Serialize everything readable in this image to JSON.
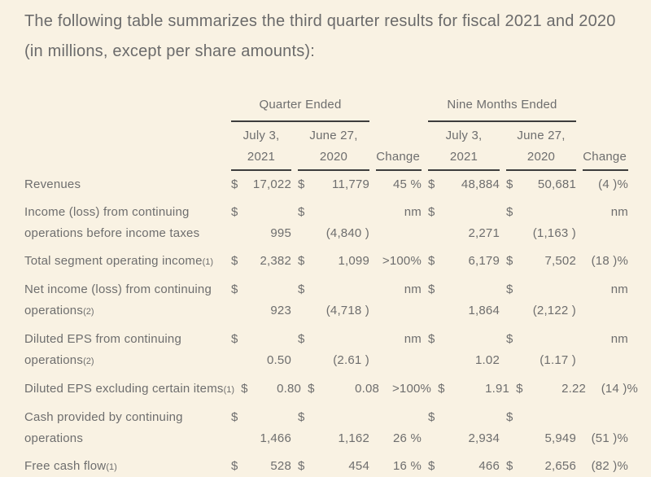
{
  "title": "The following table summarizes the third quarter results for fiscal 2021 and 2020 (in millions, except per share amounts):",
  "colors": {
    "background": "#f9f2e3",
    "text": "#6b6b6b",
    "rule": "#3d3d3d"
  },
  "table": {
    "col_groups": [
      {
        "label": "Quarter Ended"
      },
      {
        "label": "Nine Months Ended"
      }
    ],
    "sub_headers": [
      {
        "type": "date",
        "line1": "July 3,",
        "line2": "2021"
      },
      {
        "type": "date",
        "line1": "June 27,",
        "line2": "2020"
      },
      {
        "type": "change",
        "label": "Change"
      },
      {
        "type": "date",
        "line1": "July 3,",
        "line2": "2021"
      },
      {
        "type": "date",
        "line1": "June 27,",
        "line2": "2020"
      },
      {
        "type": "change",
        "label": "Change"
      }
    ],
    "rows": [
      {
        "label": "Revenues",
        "two_line": false,
        "cells": [
          {
            "cur": "$",
            "val": "17,022"
          },
          {
            "cur": "$",
            "val": "11,779"
          },
          {
            "val": "45 %"
          },
          {
            "cur": "$",
            "val": "48,884"
          },
          {
            "cur": "$",
            "val": "50,681"
          },
          {
            "val": "(4 )%"
          }
        ]
      },
      {
        "label_line1": "Income (loss) from continuing",
        "label_line2": "operations before income taxes",
        "two_line": true,
        "cells": [
          {
            "cur": "$",
            "val": "995"
          },
          {
            "cur": "$",
            "val": "(4,840 )"
          },
          {
            "val": "nm",
            "pos": "top"
          },
          {
            "cur": "$",
            "val": "2,271"
          },
          {
            "cur": "$",
            "val": "(1,163 )"
          },
          {
            "val": "nm",
            "pos": "top"
          }
        ]
      },
      {
        "label": "Total segment operating income",
        "footnote": "(1)",
        "two_line": false,
        "cells": [
          {
            "cur": "$",
            "val": "2,382"
          },
          {
            "cur": "$",
            "val": "1,099"
          },
          {
            "val": ">100%"
          },
          {
            "cur": "$",
            "val": "6,179"
          },
          {
            "cur": "$",
            "val": "7,502"
          },
          {
            "val": "(18 )%"
          }
        ]
      },
      {
        "label_line1": "Net income (loss) from continuing",
        "label_line2": "operations",
        "footnote2": "(2)",
        "two_line": true,
        "cells": [
          {
            "cur": "$",
            "val": "923"
          },
          {
            "cur": "$",
            "val": "(4,718 )"
          },
          {
            "val": "nm",
            "pos": "top"
          },
          {
            "cur": "$",
            "val": "1,864"
          },
          {
            "cur": "$",
            "val": "(2,122 )"
          },
          {
            "val": "nm",
            "pos": "top"
          }
        ]
      },
      {
        "label_line1": "Diluted EPS from continuing",
        "label_line2": "operations",
        "footnote2": "(2)",
        "two_line": true,
        "cells": [
          {
            "cur": "$",
            "val": "0.50"
          },
          {
            "cur": "$",
            "val": "(2.61 )"
          },
          {
            "val": "nm",
            "pos": "top"
          },
          {
            "cur": "$",
            "val": "1.02"
          },
          {
            "cur": "$",
            "val": "(1.17 )"
          },
          {
            "val": "nm",
            "pos": "top"
          }
        ]
      },
      {
        "label": "Diluted EPS excluding certain items",
        "footnote": "(1)",
        "two_line": false,
        "cells": [
          {
            "cur": "$",
            "val": "0.80"
          },
          {
            "cur": "$",
            "val": "0.08"
          },
          {
            "val": ">100%"
          },
          {
            "cur": "$",
            "val": "1.91"
          },
          {
            "cur": "$",
            "val": "2.22"
          },
          {
            "val": "(14 )%"
          }
        ]
      },
      {
        "label_line1": "Cash provided by continuing",
        "label_line2": "operations",
        "two_line": true,
        "cells": [
          {
            "cur": "$",
            "val": "1,466"
          },
          {
            "cur": "$",
            "val": "1,162"
          },
          {
            "val": "26 %",
            "pos": "bottom"
          },
          {
            "cur": "$",
            "val": "2,934"
          },
          {
            "cur": "$",
            "val": "5,949"
          },
          {
            "val": "(51 )%",
            "pos": "bottom"
          }
        ]
      },
      {
        "label": "Free cash flow",
        "footnote": "(1)",
        "two_line": false,
        "cells": [
          {
            "cur": "$",
            "val": "528"
          },
          {
            "cur": "$",
            "val": "454"
          },
          {
            "val": "16 %"
          },
          {
            "cur": "$",
            "val": "466"
          },
          {
            "cur": "$",
            "val": "2,656"
          },
          {
            "val": "(82 )%"
          }
        ]
      }
    ]
  }
}
